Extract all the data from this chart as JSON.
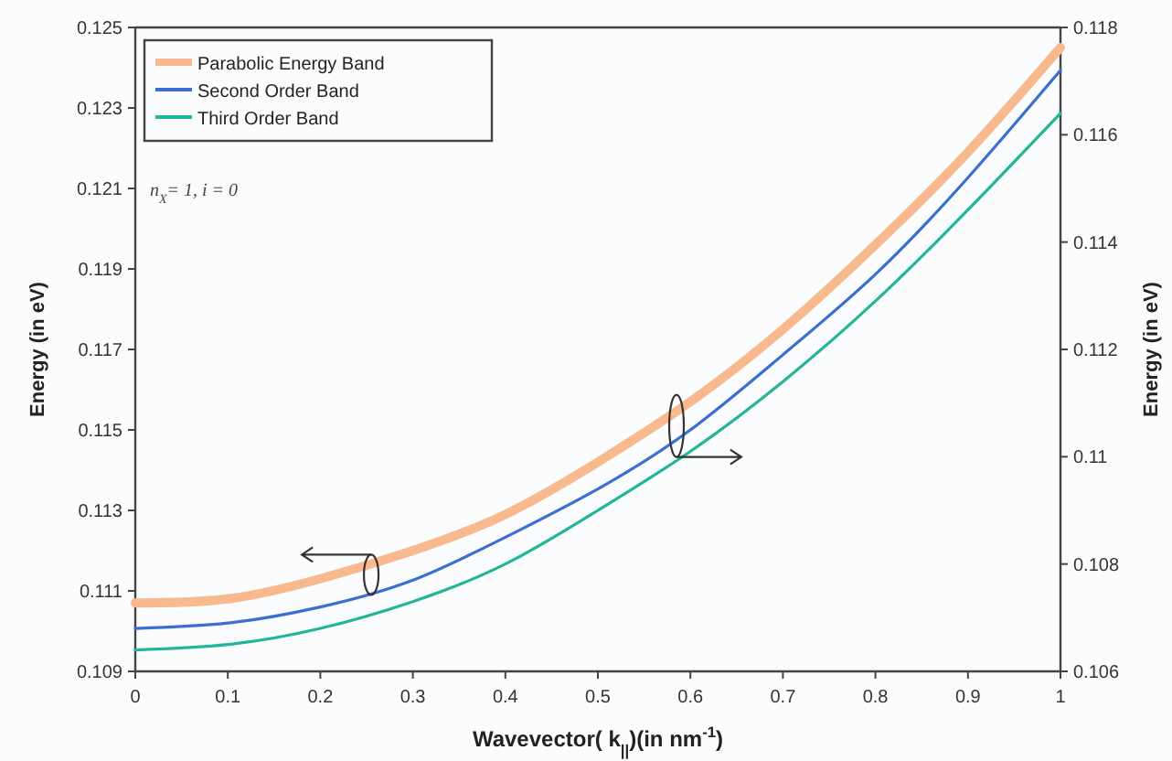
{
  "chart_data": {
    "type": "line",
    "xlabel": "Wavevector( k$_{||}$)(in nm$^{-1}$)",
    "ylabel": "Energy (in eV)",
    "y2label": "Energy (in eV)",
    "x": [
      0,
      0.1,
      0.2,
      0.3,
      0.4,
      0.5,
      0.6,
      0.7,
      0.8,
      0.9,
      1
    ],
    "series": [
      {
        "name": "Parabolic Energy Band",
        "color": "#f9b98f",
        "values": [
          0.1107,
          0.1108,
          0.1113,
          0.112,
          0.1129,
          0.1142,
          0.1157,
          0.1175,
          0.1196,
          0.1219,
          0.1245
        ]
      },
      {
        "name": "Second Order Band",
        "color": "#3a6fd0",
        "axis": "y2",
        "values": [
          0.1068,
          0.1069,
          0.1072,
          0.1077,
          0.1085,
          0.1094,
          0.1105,
          0.1119,
          0.1134,
          0.1152,
          0.1172
        ]
      },
      {
        "name": "Third Order Band",
        "color": "#22b59a",
        "axis": "y2",
        "values": [
          0.1064,
          0.1065,
          0.1068,
          0.1073,
          0.108,
          0.109,
          0.1101,
          0.1114,
          0.1129,
          0.1146,
          0.1164
        ]
      }
    ],
    "xlim": [
      0,
      1
    ],
    "xticks": [
      0,
      0.1,
      0.2,
      0.3,
      0.4,
      0.5,
      0.6,
      0.7,
      0.8,
      0.9,
      1
    ],
    "ylim": [
      0.109,
      0.125
    ],
    "yticks": [
      0.109,
      0.111,
      0.113,
      0.115,
      0.117,
      0.119,
      0.121,
      0.123,
      0.125
    ],
    "y2lim": [
      0.106,
      0.118
    ],
    "y2ticks": [
      0.106,
      0.108,
      0.11,
      0.112,
      0.114,
      0.116,
      0.118
    ],
    "annotations": [
      "n$_{X}$= 1, i = 0"
    ],
    "legend": "top left",
    "grid": false,
    "marker": "none",
    "line_style": "solid"
  }
}
